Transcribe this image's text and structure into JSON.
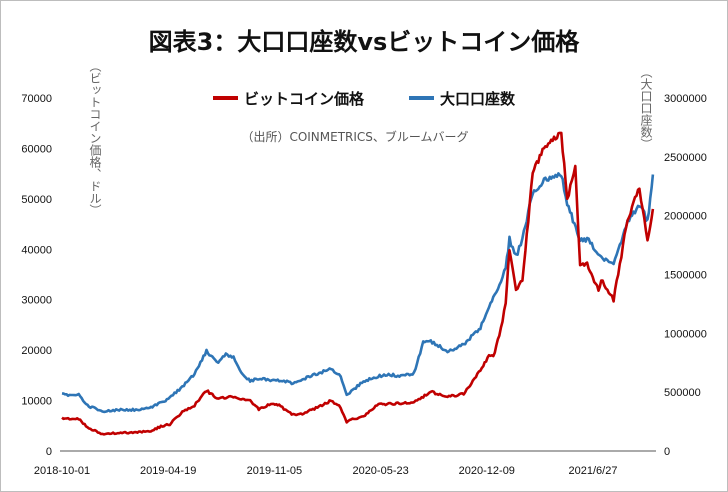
{
  "chart_data": {
    "type": "line",
    "title": "図表3：大口口座数vsビットコイン価格",
    "source": "（出所）COINMETRICS、ブルームバーグ",
    "ylabel_left": "（ビットコイン価格、ドル）",
    "ylabel_right": "（大口口座数）",
    "ylim_left": [
      0,
      70000
    ],
    "ylim_right": [
      0,
      3000000
    ],
    "yticks_left": [
      "0",
      "10000",
      "20000",
      "30000",
      "40000",
      "50000",
      "60000",
      "70000"
    ],
    "yticks_right": [
      "0",
      "500000",
      "1000000",
      "1500000",
      "2000000",
      "2500000",
      "3000000"
    ],
    "xtick_labels": [
      "2018-10-01",
      "2019-04-19",
      "2019-11-05",
      "2020-05-23",
      "2020-12-09",
      "2021/6/27"
    ],
    "legend_position": "top",
    "series": [
      {
        "name": "ビットコイン価格",
        "axis": "left",
        "color": "#c00000",
        "x": [
          "2018-10-01",
          "2018-11-01",
          "2018-11-20",
          "2018-12-15",
          "2019-01-15",
          "2019-02-15",
          "2019-03-15",
          "2019-04-05",
          "2019-04-19",
          "2019-05-15",
          "2019-06-01",
          "2019-06-26",
          "2019-07-15",
          "2019-08-15",
          "2019-09-15",
          "2019-10-01",
          "2019-10-26",
          "2019-11-05",
          "2019-12-01",
          "2019-12-15",
          "2020-01-15",
          "2020-02-12",
          "2020-03-01",
          "2020-03-12",
          "2020-03-20",
          "2020-04-15",
          "2020-05-10",
          "2020-05-23",
          "2020-06-15",
          "2020-07-15",
          "2020-08-15",
          "2020-09-15",
          "2020-10-15",
          "2020-11-01",
          "2020-11-15",
          "2020-12-01",
          "2020-12-09",
          "2020-12-20",
          "2021-01-01",
          "2021-01-08",
          "2021-01-20",
          "2021-02-01",
          "2021-02-20",
          "2021-03-13",
          "2021-04-14",
          "2021-04-25",
          "2021-05-10",
          "2021-05-19",
          "2021-06-01",
          "2021-06-22",
          "2021-06-27",
          "2021-07-20",
          "2021-08-15",
          "2021-09-06",
          "2021-09-21",
          "2021-10-01"
        ],
        "values": [
          6500,
          6300,
          4500,
          3400,
          3600,
          3700,
          4000,
          5000,
          5300,
          8000,
          8700,
          12000,
          10500,
          10700,
          10000,
          8300,
          9500,
          9200,
          7400,
          7200,
          8500,
          10000,
          8600,
          5800,
          6200,
          7000,
          9500,
          9200,
          9500,
          9600,
          11800,
          10700,
          11400,
          13800,
          16000,
          19000,
          18700,
          23000,
          29000,
          40000,
          32000,
          34000,
          55000,
          60000,
          63000,
          50000,
          56000,
          37000,
          37000,
          32000,
          34000,
          30000,
          46000,
          52000,
          42000,
          48000
        ]
      },
      {
        "name": "大口口座数",
        "axis": "right",
        "color": "#2e75b6",
        "x": [
          "2018-10-01",
          "2018-11-01",
          "2018-11-20",
          "2018-12-15",
          "2019-01-15",
          "2019-02-15",
          "2019-03-15",
          "2019-04-19",
          "2019-05-15",
          "2019-06-01",
          "2019-06-26",
          "2019-07-15",
          "2019-08-01",
          "2019-08-15",
          "2019-09-01",
          "2019-09-15",
          "2019-10-01",
          "2019-11-05",
          "2019-12-01",
          "2020-01-15",
          "2020-02-12",
          "2020-03-01",
          "2020-03-12",
          "2020-04-15",
          "2020-05-23",
          "2020-06-15",
          "2020-07-15",
          "2020-08-01",
          "2020-08-15",
          "2020-09-15",
          "2020-10-15",
          "2020-11-15",
          "2020-12-09",
          "2021-01-01",
          "2021-01-08",
          "2021-01-20",
          "2021-02-01",
          "2021-02-20",
          "2021-03-13",
          "2021-04-14",
          "2021-04-25",
          "2021-05-19",
          "2021-06-01",
          "2021-06-27",
          "2021-07-20",
          "2021-08-15",
          "2021-09-06",
          "2021-09-21",
          "2021-10-01"
        ],
        "values": [
          480000,
          475000,
          380000,
          340000,
          350000,
          350000,
          370000,
          450000,
          560000,
          640000,
          850000,
          750000,
          820000,
          800000,
          650000,
          600000,
          610000,
          600000,
          580000,
          650000,
          700000,
          630000,
          480000,
          600000,
          650000,
          640000,
          660000,
          920000,
          930000,
          850000,
          900000,
          1050000,
          1300000,
          1550000,
          1800000,
          1650000,
          1800000,
          2200000,
          2300000,
          2350000,
          2100000,
          1800000,
          1800000,
          1650000,
          1600000,
          1950000,
          2100000,
          1950000,
          2350000
        ]
      }
    ]
  }
}
